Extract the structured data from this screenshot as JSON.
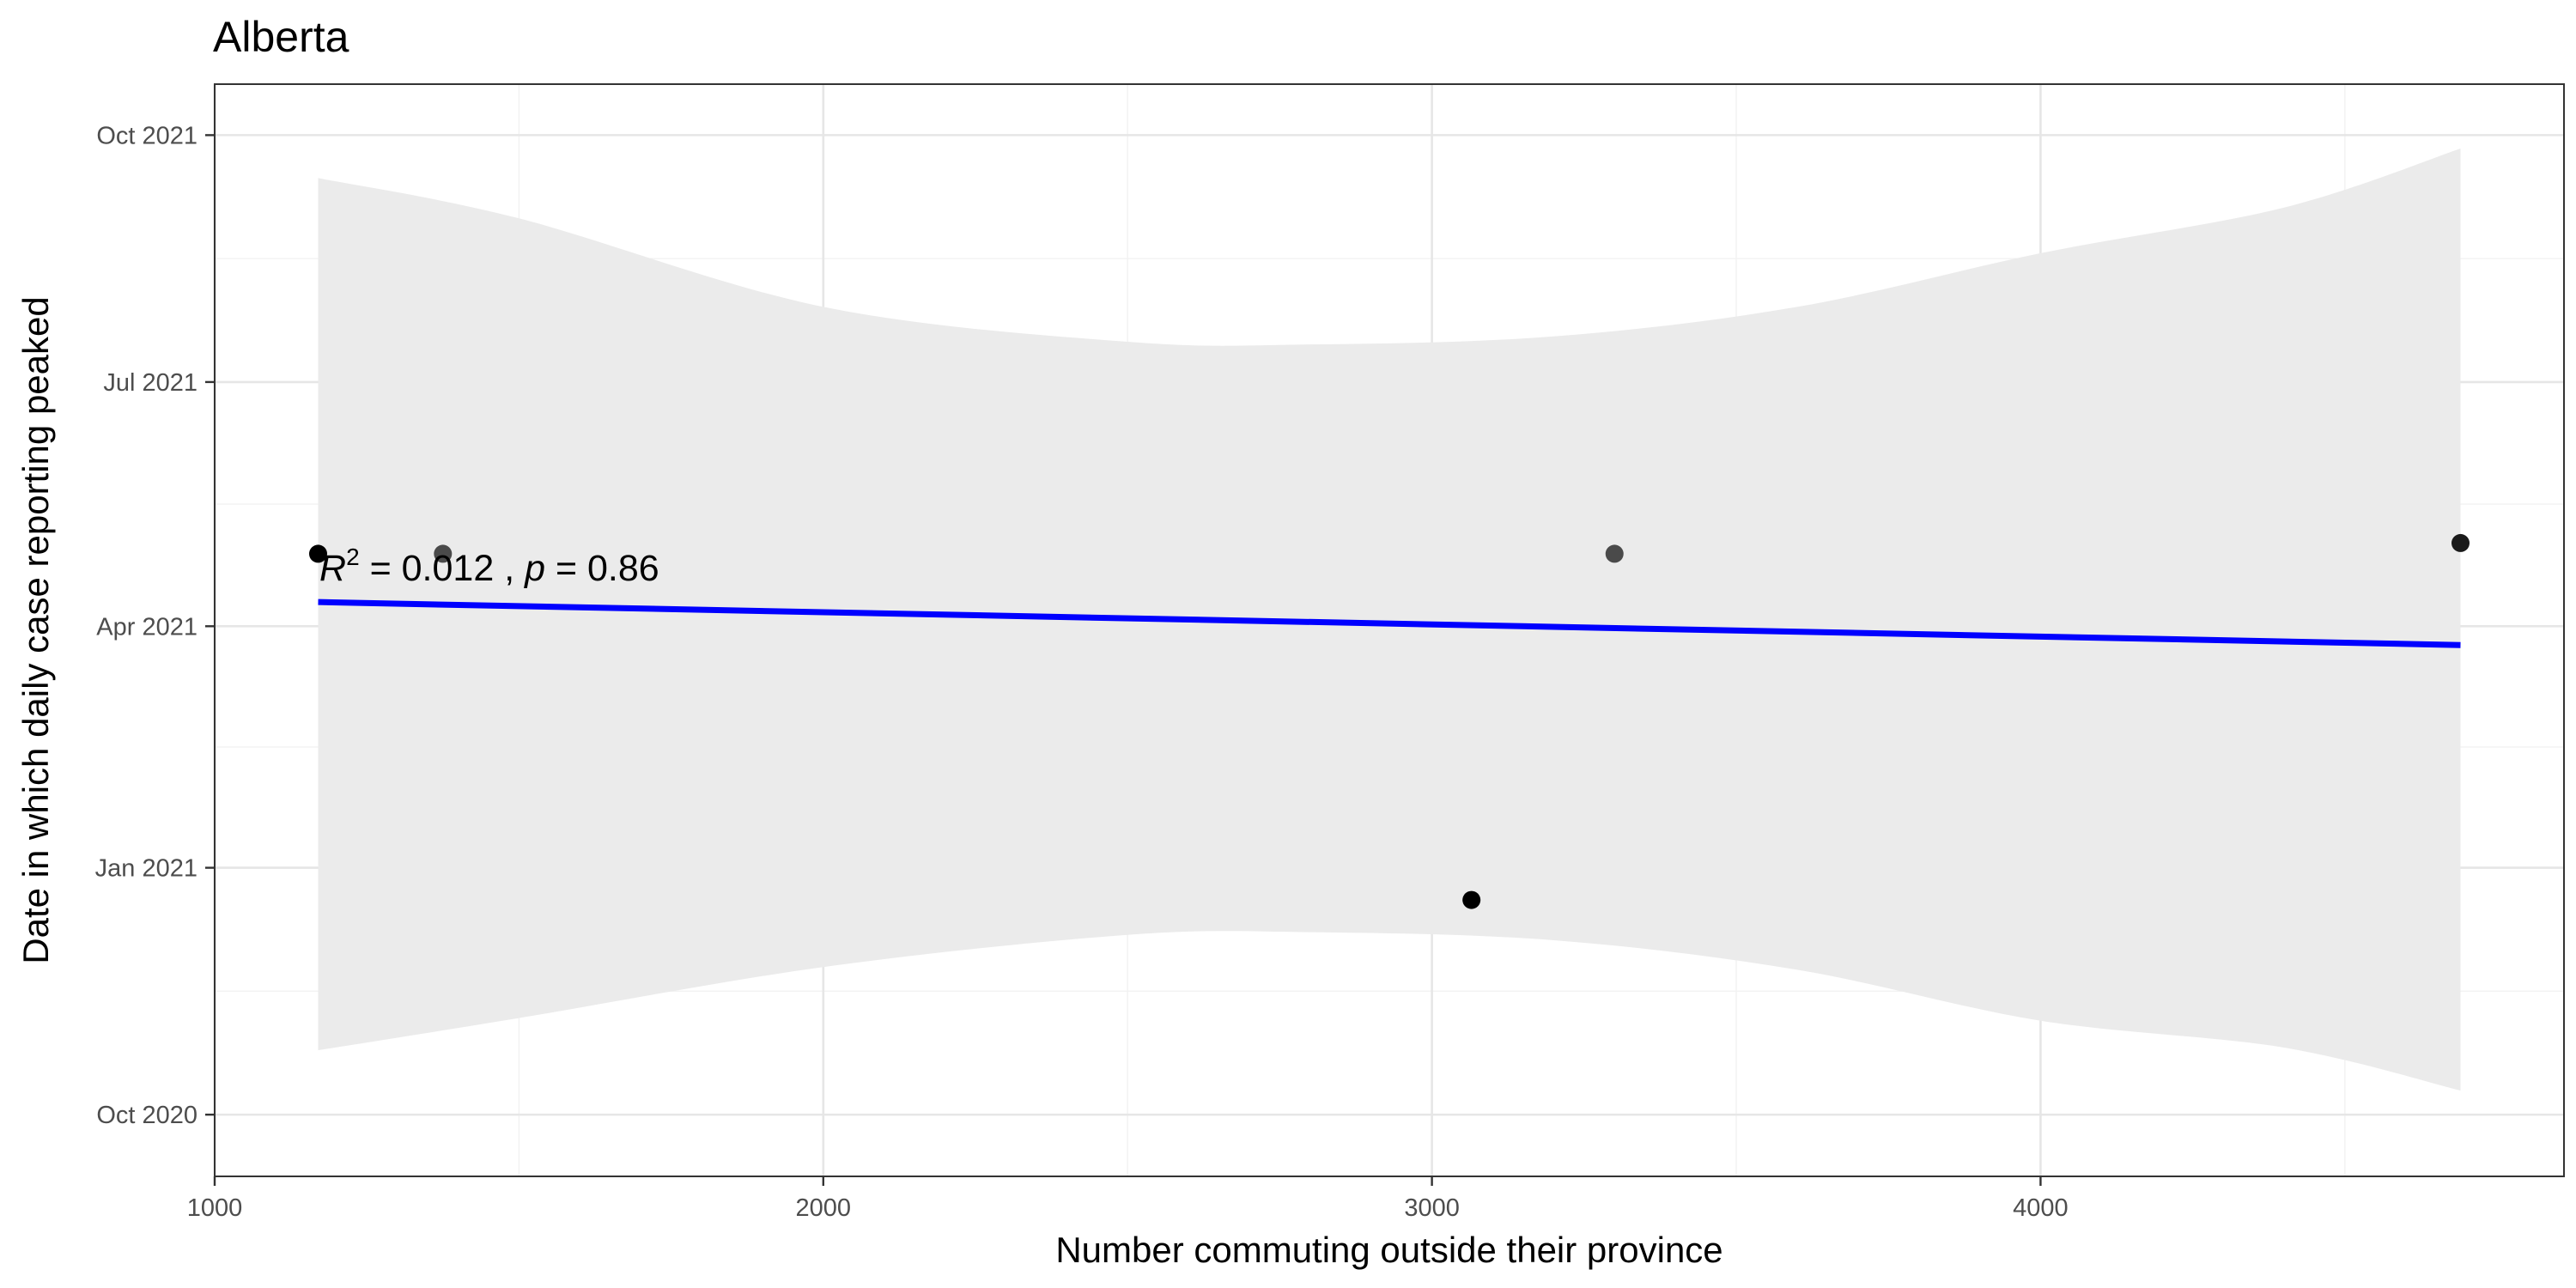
{
  "chart_data": {
    "type": "scatter",
    "title": "Alberta",
    "xlabel": "Number commuting outside their province",
    "ylabel": "Date in which daily case reporting peaked",
    "xlim": [
      1000,
      4860
    ],
    "ylim": [
      "2020-09-08",
      "2021-10-20"
    ],
    "x_ticks": [
      1000,
      2000,
      3000,
      4000
    ],
    "x_tick_labels": [
      "1000",
      "2000",
      "3000",
      "4000"
    ],
    "y_ticks": [
      "2020-10-01",
      "2021-01-01",
      "2021-04-01",
      "2021-07-01",
      "2021-10-01"
    ],
    "y_tick_labels": [
      "Oct 2020",
      "Jan 2021",
      "Apr 2021",
      "Jul 2021",
      "Oct 2021"
    ],
    "grid": true,
    "points": [
      {
        "x": 1170,
        "y": "2021-04-28"
      },
      {
        "x": 1375,
        "y": "2021-04-28"
      },
      {
        "x": 3065,
        "y": "2020-12-20"
      },
      {
        "x": 3300,
        "y": "2021-04-28"
      },
      {
        "x": 4690,
        "y": "2021-05-02"
      }
    ],
    "point_colors": [
      "#000000",
      "#4a4a4a",
      "#000000",
      "#4a4a4a",
      "#1a1a1a"
    ],
    "trend_line": {
      "color": "#0000ff",
      "start": {
        "x": 1170,
        "y": "2021-04-10"
      },
      "end": {
        "x": 4690,
        "y": "2021-03-25"
      }
    },
    "confidence_band": {
      "color": "#ebebeb",
      "x": [
        1170,
        1500,
        2000,
        2500,
        2800,
        3200,
        3600,
        4000,
        4400,
        4690
      ],
      "upper": [
        "2021-09-15",
        "2021-08-31",
        "2021-07-29",
        "2021-07-16",
        "2021-07-15",
        "2021-07-18",
        "2021-07-29",
        "2021-08-18",
        "2021-09-04",
        "2021-09-26"
      ],
      "lower": [
        "2020-10-25",
        "2020-11-06",
        "2020-11-25",
        "2020-12-07",
        "2020-12-08",
        "2020-12-05",
        "2020-11-24",
        "2020-11-05",
        "2020-10-26",
        "2020-10-10"
      ]
    },
    "annotation": {
      "r2_label": "R",
      "r2_sup": "2",
      "r2_value": " = 0.012 , ",
      "p_label": "p",
      "p_value": " = 0.86"
    }
  }
}
